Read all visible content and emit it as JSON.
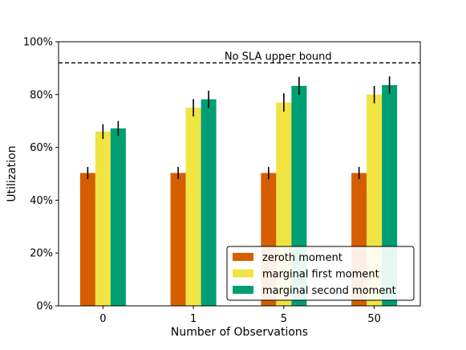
{
  "chart_data": {
    "type": "bar",
    "title": "",
    "xlabel": "Number of Observations",
    "ylabel": "Utilization",
    "categories": [
      "0",
      "1",
      "5",
      "50"
    ],
    "ylim": [
      0,
      100
    ],
    "yticks": [
      0,
      20,
      40,
      60,
      80,
      100
    ],
    "ytick_labels": [
      "0%",
      "20%",
      "40%",
      "60%",
      "80%",
      "100%"
    ],
    "series": [
      {
        "name": "zeroth moment",
        "color": "#d55e00",
        "values": [
          50.3,
          50.3,
          50.3,
          50.3
        ],
        "errors": [
          2.3,
          2.3,
          2.3,
          2.3
        ]
      },
      {
        "name": "marginal first moment",
        "color": "#f0e442",
        "values": [
          66.0,
          75.0,
          77.0,
          80.0
        ],
        "errors": [
          2.8,
          3.3,
          3.5,
          3.3
        ]
      },
      {
        "name": "marginal second moment",
        "color": "#009e73",
        "values": [
          67.2,
          78.2,
          83.3,
          83.6
        ],
        "errors": [
          2.8,
          3.3,
          3.4,
          3.3
        ]
      }
    ],
    "reference_line": {
      "value": 92,
      "label": "No SLA upper bound",
      "style": "dashed"
    },
    "legend_position": "lower-right",
    "grid": false
  }
}
